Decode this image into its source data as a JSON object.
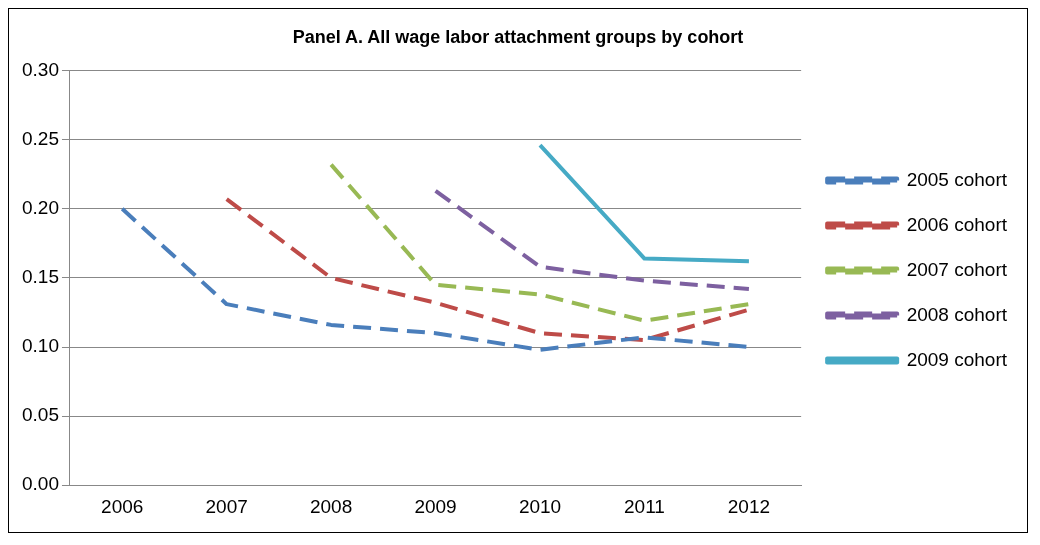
{
  "chart_data": {
    "type": "line",
    "title": "Panel A. All wage labor attachment groups by cohort",
    "categories": [
      "2006",
      "2007",
      "2008",
      "2009",
      "2010",
      "2011",
      "2012"
    ],
    "series": [
      {
        "name": "2005 cohort",
        "color": "#4a7ebb",
        "line_style": "dashed",
        "values": [
          0.2,
          0.131,
          0.116,
          0.11,
          0.098,
          0.107,
          0.1
        ]
      },
      {
        "name": "2006 cohort",
        "color": "#be4b48",
        "line_style": "dashed",
        "values": [
          null,
          0.207,
          0.15,
          0.132,
          0.11,
          0.105,
          0.127
        ]
      },
      {
        "name": "2007 cohort",
        "color": "#98b954",
        "line_style": "dashed",
        "values": [
          null,
          null,
          0.232,
          0.145,
          0.138,
          0.119,
          0.131
        ]
      },
      {
        "name": "2008 cohort",
        "color": "#7d60a0",
        "line_style": "dashed",
        "values": [
          null,
          null,
          null,
          0.213,
          0.158,
          0.148,
          0.142
        ]
      },
      {
        "name": "2009 cohort",
        "color": "#46aac5",
        "line_style": "solid",
        "values": [
          null,
          null,
          null,
          null,
          0.246,
          0.164,
          0.162
        ]
      }
    ],
    "ylim": [
      0,
      0.3
    ],
    "yticks": [
      {
        "value": 0,
        "label": "0.00"
      },
      {
        "value": 0.05,
        "label": "0.05"
      },
      {
        "value": 0.1,
        "label": "0.10"
      },
      {
        "value": 0.15,
        "label": "0.15"
      },
      {
        "value": 0.2,
        "label": "0.20"
      },
      {
        "value": 0.25,
        "label": "0.25"
      },
      {
        "value": 0.3,
        "label": "0.30"
      }
    ],
    "grid": "y",
    "legend": "right",
    "marker": "none"
  }
}
